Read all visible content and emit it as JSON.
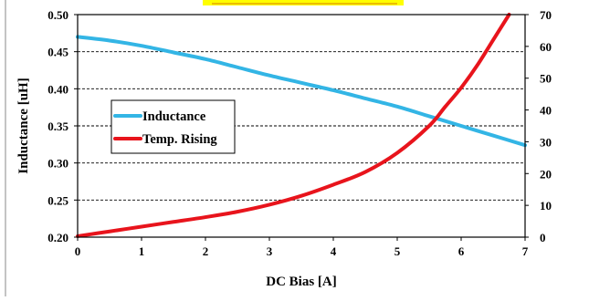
{
  "chart_data": {
    "type": "line",
    "title": "",
    "xlabel": "DC Bias [A]",
    "ylabel": "Inductance [uH]",
    "y2label": "",
    "xlim": [
      0,
      7
    ],
    "ylim": [
      0.2,
      0.5
    ],
    "y2lim": [
      0,
      70
    ],
    "x_ticks": [
      "0",
      "1",
      "2",
      "3",
      "4",
      "5",
      "6",
      "7"
    ],
    "y_ticks": [
      "0.20",
      "0.25",
      "0.30",
      "0.35",
      "0.40",
      "0.45",
      "0.50"
    ],
    "y2_ticks": [
      "0",
      "10",
      "20",
      "30",
      "40",
      "50",
      "60",
      "70"
    ],
    "grid": "dashed horizontal",
    "legend_position": "left-middle",
    "series": [
      {
        "name": "Inductance",
        "axis": "left",
        "color": "#33b5e5",
        "x": [
          0,
          0.5,
          1,
          1.5,
          2,
          2.5,
          3,
          3.5,
          4,
          4.5,
          5,
          5.5,
          6,
          6.5,
          7
        ],
        "y": [
          0.47,
          0.465,
          0.458,
          0.449,
          0.44,
          0.429,
          0.418,
          0.408,
          0.398,
          0.387,
          0.376,
          0.363,
          0.35,
          0.337,
          0.324
        ]
      },
      {
        "name": "Temp. Rising",
        "axis": "right",
        "color": "#e8141c",
        "x": [
          0,
          0.5,
          1,
          1.5,
          2,
          2.5,
          3,
          3.5,
          4,
          4.5,
          5,
          5.5,
          5.75,
          6,
          6.25,
          6.5,
          6.75
        ],
        "y": [
          0.3,
          1.8,
          3.3,
          4.8,
          6.3,
          8.0,
          10.2,
          13.0,
          16.5,
          20.5,
          26.5,
          35.0,
          41.0,
          47.0,
          54.0,
          62.0,
          70.0
        ]
      }
    ]
  }
}
